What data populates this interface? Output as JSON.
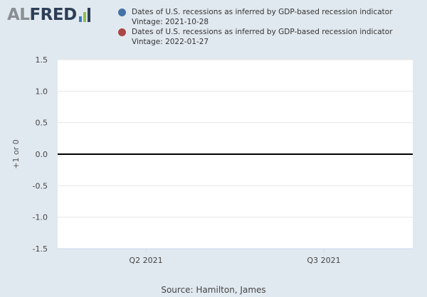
{
  "logo": {
    "part1": "AL",
    "part2": "FRED",
    "bar_colors": [
      "#3d7cbf",
      "#8fbf4a",
      "#2d3e56"
    ]
  },
  "legend": [
    {
      "title": "Dates of U.S. recessions as inferred by GDP-based recession indicator",
      "vintage": "Vintage: 2021-10-28",
      "color": "#4572a7"
    },
    {
      "title": "Dates of U.S. recessions as inferred by GDP-based recession indicator",
      "vintage": "Vintage: 2022-01-27",
      "color": "#aa4643"
    }
  ],
  "source": "Source: Hamilton, James",
  "chart_data": {
    "type": "line",
    "ylabel": "+1 or 0",
    "ylim": [
      -1.5,
      1.5
    ],
    "y_ticks": [
      "1.5",
      "1.0",
      "0.5",
      "0.0",
      "-0.5",
      "-1.0",
      "-1.5"
    ],
    "x_ticks": [
      "Q2 2021",
      "Q3 2021"
    ],
    "grid": true,
    "series": [
      {
        "name": "Dates of U.S. recessions as inferred by GDP-based recession indicator (Vintage: 2021-10-28)",
        "x": [
          "Q2 2021",
          "Q3 2021"
        ],
        "values": [
          0,
          0
        ]
      },
      {
        "name": "Dates of U.S. recessions as inferred by GDP-based recession indicator (Vintage: 2022-01-27)",
        "x": [
          "Q2 2021",
          "Q3 2021"
        ],
        "values": [
          0,
          0
        ]
      }
    ],
    "zero_line": true
  }
}
